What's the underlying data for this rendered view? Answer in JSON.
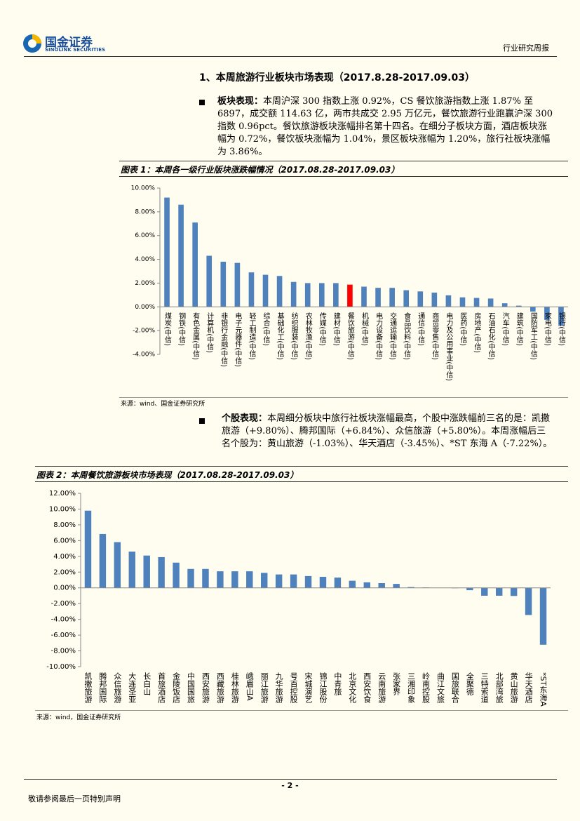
{
  "header": {
    "logo_cn": "国金证券",
    "logo_en": "SINOLINK SECURITIES",
    "report_type": "行业研究周报"
  },
  "section_title": "1、本周旅游行业板块市场表现（2017.8.28-2017.09.03）",
  "paragraphs": [
    {
      "lead": "板块表现：",
      "text": "本周沪深 300 指数上涨 0.92%，CS 餐饮旅游指数上涨 1.87% 至 6897，成交额 114.63 亿，两市共成交 2.95 万亿元，餐饮旅游行业跑赢沪深 300 指数 0.96pct。餐饮旅游板块涨幅排名第十四名。在细分子板块方面，酒店板块涨幅为 0.72%，餐饮板块涨幅为 1.04%，景区板块涨幅为 1.20%，旅行社板块涨幅为 3.86%。"
    },
    {
      "lead": "个股表现：",
      "text": "本周细分板块中旅行社板块涨幅最高，个股中涨跌幅前三名的是：凯撒旅游（+9.80%）、腾邦国际（+6.84%）、众信旅游（+5.80%）。本周涨幅后三名个股为：黄山旅游（-1.03%）、华天酒店（-3.45%）、*ST 东海 A（-7.22%）。"
    }
  ],
  "chart_data": [
    {
      "type": "bar",
      "title": "图表 1：本周各一级行业版块涨跌幅情况（2017.08.28-2017.09.03）",
      "categories": [
        "煤炭(中信)",
        "钢铁(中信)",
        "有色金属(中信)",
        "计算机(中信)",
        "非银行金融(中信)",
        "电子元器件(中信)",
        "轻工制造(中信)",
        "综合(中信)",
        "基础化工(中信)",
        "纺织服装(中信)",
        "农林牧渔(中信)",
        "传媒(中信)",
        "建材(中信)",
        "餐饮旅游(中信)",
        "机械(中信)",
        "电力设备(中信)",
        "交通运输(中信)",
        "食品饮料(中信)",
        "通信(中信)",
        "商贸零售(中信)",
        "电力及公用事业(中信)",
        "医药(中信)",
        "房地产(中信)",
        "石油石化(中信)",
        "汽车(中信)",
        "建筑(中信)",
        "国防军工(中信)",
        "家电(中信)",
        "银行(中信)"
      ],
      "values": [
        9.2,
        8.6,
        7.1,
        4.3,
        3.8,
        3.7,
        2.9,
        2.7,
        2.6,
        2.1,
        2.0,
        2.0,
        2.0,
        1.87,
        1.7,
        1.6,
        1.6,
        1.4,
        1.3,
        1.2,
        0.97,
        0.8,
        0.75,
        0.7,
        0.3,
        0.1,
        -0.4,
        -1.1,
        -1.6
      ],
      "colors": [
        "#4f81bd",
        "#4f81bd",
        "#4f81bd",
        "#4f81bd",
        "#4f81bd",
        "#4f81bd",
        "#4f81bd",
        "#4f81bd",
        "#4f81bd",
        "#4f81bd",
        "#4f81bd",
        "#4f81bd",
        "#4f81bd",
        "#ff0000",
        "#4f81bd",
        "#4f81bd",
        "#4f81bd",
        "#4f81bd",
        "#4f81bd",
        "#4f81bd",
        "#4f81bd",
        "#4f81bd",
        "#4f81bd",
        "#4f81bd",
        "#4f81bd",
        "#4f81bd",
        "#4f81bd",
        "#4f81bd",
        "#4f81bd"
      ],
      "ylim": [
        -4,
        10
      ],
      "yticks": [
        {
          "value": -4,
          "label": "-4.00%"
        },
        {
          "value": -2,
          "label": "-2.00%"
        },
        {
          "value": 0,
          "label": "0.00%"
        },
        {
          "value": 2,
          "label": "2.00%"
        },
        {
          "value": 4,
          "label": "4.00%"
        },
        {
          "value": 6,
          "label": "6.00%"
        },
        {
          "value": 8,
          "label": "8.00%"
        },
        {
          "value": 10,
          "label": "10.00%"
        }
      ],
      "source": "来源：wind、国金证券研究所"
    },
    {
      "type": "bar",
      "title": "图表 2：本周餐饮旅游板块市场表现（2017.08.28-2017.09.03）",
      "categories": [
        "凯撒旅游",
        "腾邦国际",
        "众信旅游",
        "大连圣亚",
        "长白山",
        "首旅酒店",
        "金陵饭店",
        "中国国旅",
        "西安旅游",
        "西藏旅游",
        "桂林旅游",
        "峨眉山A",
        "丽江旅游",
        "九华旅游",
        "号百控股",
        "宋城演艺",
        "锦江股份",
        "中青旅",
        "北京文化",
        "西安饮食",
        "云南旅游",
        "张家界",
        "三湘印象",
        "岭南控股",
        "曲江文旅",
        "国旅联合",
        "全聚德",
        "三特索道",
        "北部湾旅",
        "黄山旅游",
        "华天酒店",
        "*ST东海A"
      ],
      "values": [
        9.8,
        6.84,
        5.8,
        4.6,
        4.1,
        3.9,
        3.2,
        2.4,
        2.4,
        2.1,
        2.1,
        2.1,
        1.9,
        1.7,
        1.7,
        1.5,
        1.4,
        1.3,
        0.9,
        0.7,
        0.6,
        0.5,
        0.1,
        0.05,
        0.02,
        -0.05,
        -0.3,
        -1.0,
        -1.0,
        -1.03,
        -3.45,
        -7.22
      ],
      "color": "#4f81bd",
      "ylim": [
        -10,
        12
      ],
      "yticks": [
        {
          "value": -10,
          "label": "-10.00%"
        },
        {
          "value": -8,
          "label": "-8.00%"
        },
        {
          "value": -6,
          "label": "-6.00%"
        },
        {
          "value": -4,
          "label": "-4.00%"
        },
        {
          "value": -2,
          "label": "-2.00%"
        },
        {
          "value": 0,
          "label": "0.00%"
        },
        {
          "value": 2,
          "label": "2.00%"
        },
        {
          "value": 4,
          "label": "4.00%"
        },
        {
          "value": 6,
          "label": "6.00%"
        },
        {
          "value": 8,
          "label": "8.00%"
        },
        {
          "value": 10,
          "label": "10.00%"
        },
        {
          "value": 12,
          "label": "12.00%"
        }
      ],
      "source": "来源：wind，国金证券研究所"
    }
  ],
  "footer": {
    "page": "- 2 -",
    "disclaimer": "敬请参阅最后一页特别声明"
  }
}
